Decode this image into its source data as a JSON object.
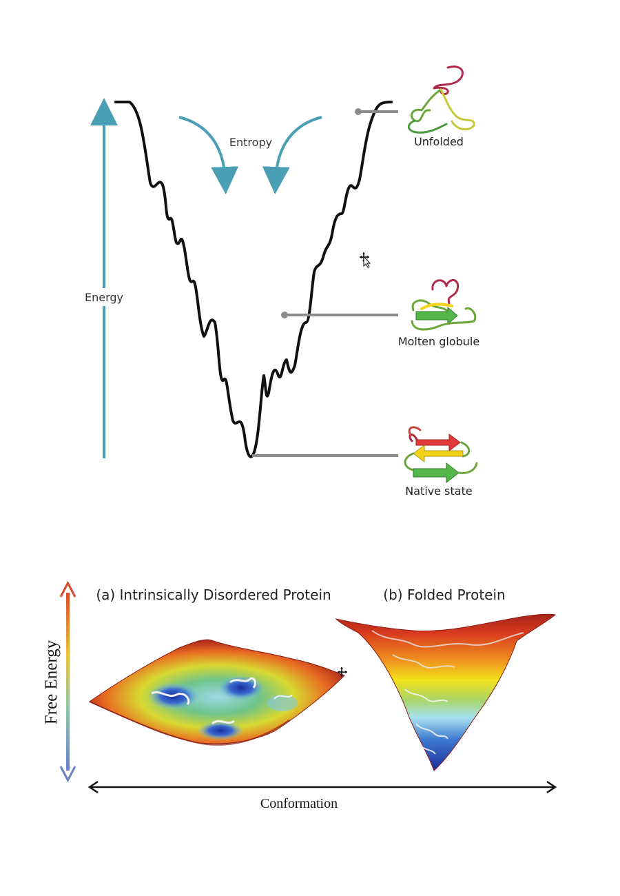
{
  "funnel": {
    "energy_label": "Energy",
    "entropy_label": "Entropy",
    "states": [
      {
        "label": "Unfolded"
      },
      {
        "label": "Molten globule"
      },
      {
        "label": "Native state"
      }
    ],
    "colors": {
      "arrow": "#4a9fb5",
      "curve": "#111111",
      "leader": "#8c8c8c",
      "strand_red": "#e03a3a",
      "strand_yellow": "#f2d21a",
      "strand_green": "#54b848",
      "coil_dark_red": "#b02a4a"
    }
  },
  "landscape": {
    "y_axis_label": "Free Energy",
    "x_axis_label": "Conformation",
    "panel_a_title": "(a) Intrinsically Disordered Protein",
    "panel_b_title": "(b) Folded Protein",
    "colors": {
      "high": "#d94a2a",
      "low": "#6a7fc8",
      "surface_top": "#c9301f",
      "surface_mid": "#f2e21a",
      "surface_low": "#2a48b0"
    }
  }
}
